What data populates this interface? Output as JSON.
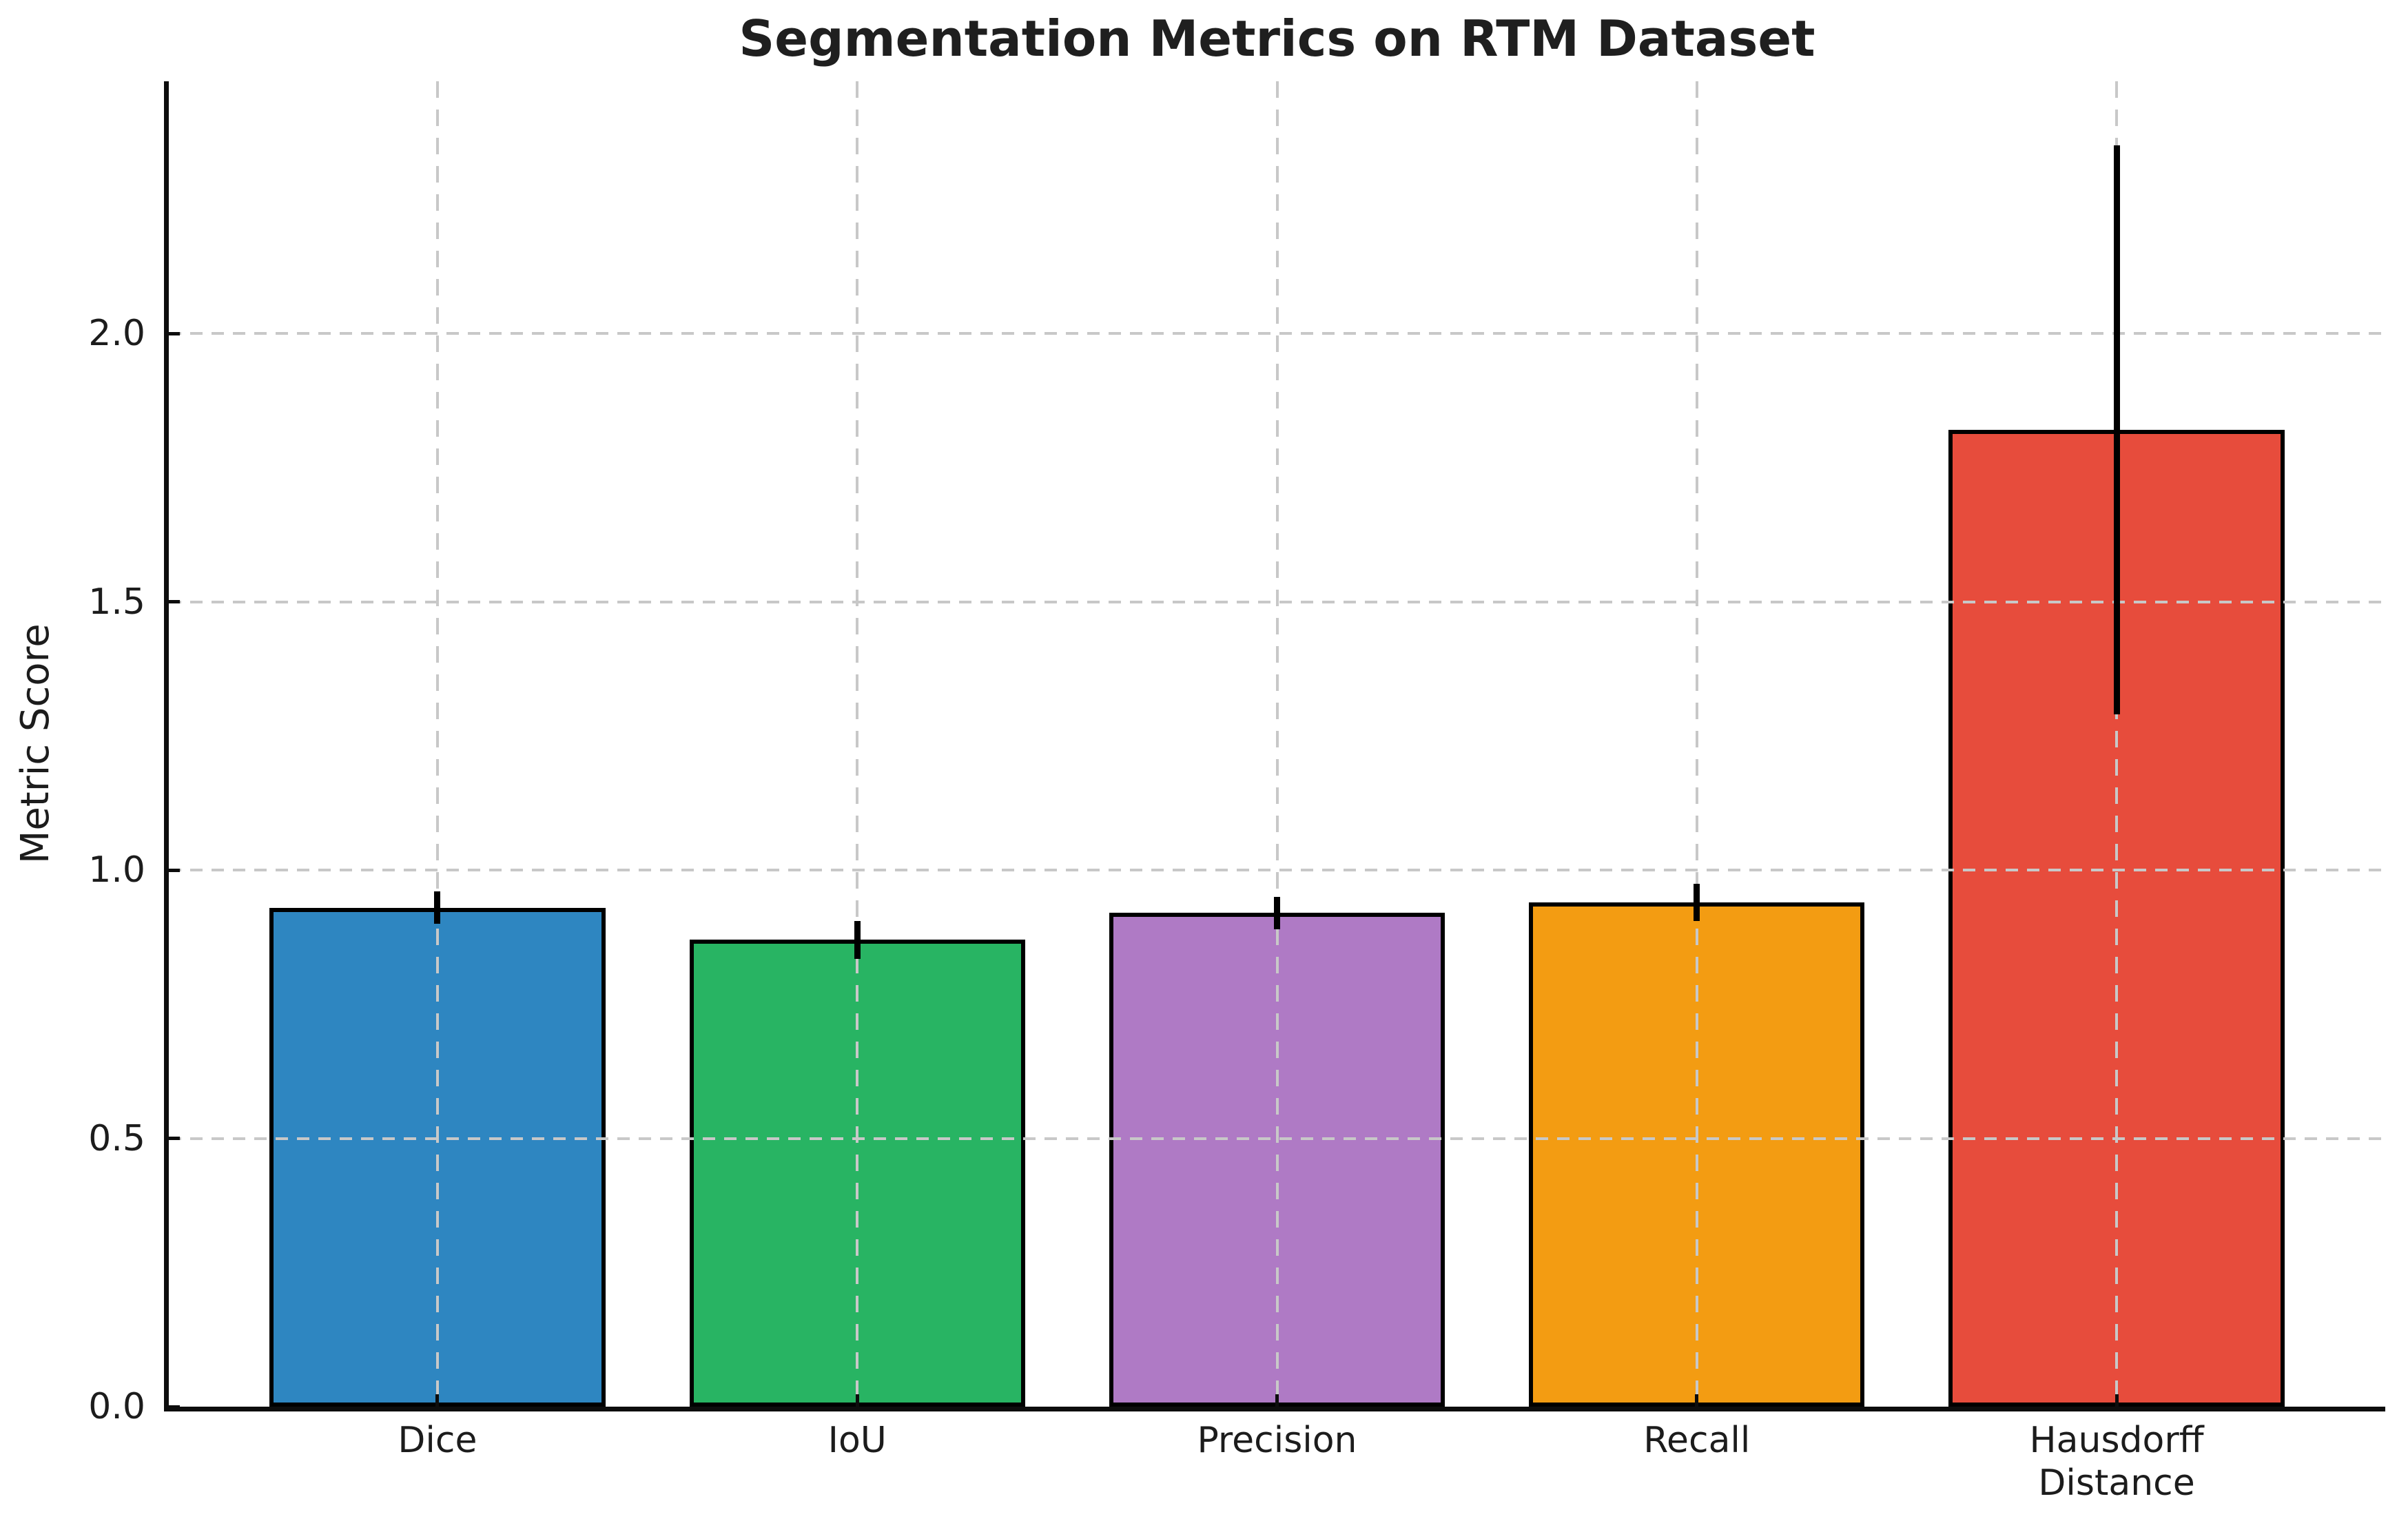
{
  "chart_data": {
    "type": "bar",
    "title": "Segmentation Metrics on RTM Dataset",
    "xlabel": "",
    "ylabel": "Metric Score",
    "categories": [
      "Dice",
      "IoU",
      "Precision",
      "Recall",
      "Hausdorff\nDistance"
    ],
    "values": [
      0.93,
      0.87,
      0.92,
      0.94,
      1.82
    ],
    "error_bars": [
      0.03,
      0.035,
      0.03,
      0.035,
      0.53
    ],
    "bar_colors": [
      "#2E86C1",
      "#28B463",
      "#AF7AC5",
      "#F39C12",
      "#E74C3C"
    ],
    "bar_edge_color": "#000000",
    "error_bar_color": "#000000",
    "ylim": [
      0,
      2.47
    ],
    "yticks": [
      0.0,
      0.5,
      1.0,
      1.5,
      2.0
    ],
    "ytick_labels": [
      "0.0",
      "0.5",
      "1.0",
      "1.5",
      "2.0"
    ],
    "grid": "both, dashed, drawn over bars",
    "grid_color": "#c8c8c8",
    "legend": "none",
    "background_color": "#ffffff"
  }
}
